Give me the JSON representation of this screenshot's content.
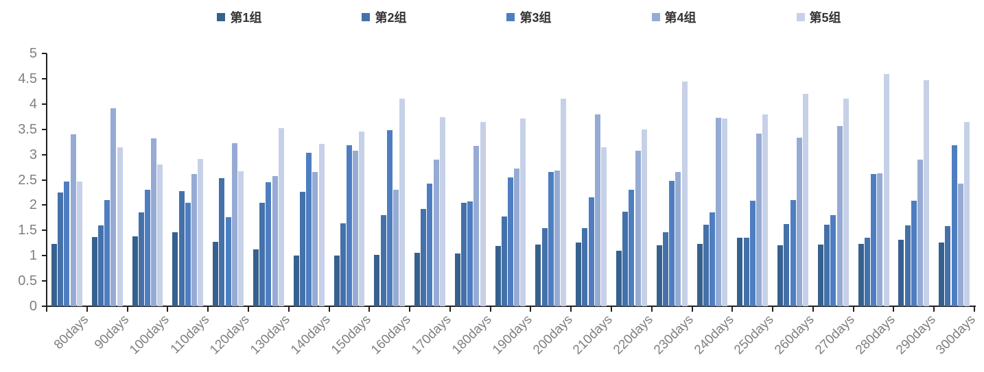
{
  "chart_data": {
    "type": "bar",
    "title": "",
    "xlabel": "",
    "ylabel": "",
    "legend_position": "top",
    "grid": false,
    "ylim": [
      0,
      5
    ],
    "yticks": [
      0,
      0.5,
      1,
      1.5,
      2,
      2.5,
      3,
      3.5,
      4,
      4.5,
      5
    ],
    "axis_color": "#1f1f1f",
    "tick_label_color": "#7f7f7f",
    "categories": [
      "80days",
      "90days",
      "100days",
      "110days",
      "120days",
      "130days",
      "140days",
      "150days",
      "160days",
      "170days",
      "180days",
      "190days",
      "200days",
      "210days",
      "220days",
      "230days",
      "240days",
      "250days",
      "260days",
      "270days",
      "280days",
      "290days",
      "300days"
    ],
    "series": [
      {
        "name": "第1组",
        "color": "#36618E",
        "values": [
          1.24,
          1.37,
          1.38,
          1.46,
          1.28,
          1.13,
          1.0,
          1.01,
          1.02,
          1.06,
          1.05,
          1.19,
          1.22,
          1.26,
          1.1,
          1.2,
          1.23,
          1.36,
          1.2,
          1.22,
          1.24,
          1.31,
          1.26
        ]
      },
      {
        "name": "第2组",
        "color": "#4471A9",
        "values": [
          2.25,
          1.6,
          1.86,
          2.28,
          2.53,
          2.05,
          2.26,
          1.64,
          1.8,
          1.92,
          2.05,
          1.77,
          1.54,
          1.54,
          1.87,
          1.47,
          1.61,
          1.35,
          1.63,
          1.61,
          1.36,
          1.6,
          1.58
        ]
      },
      {
        "name": "第3组",
        "color": "#4E7EC1",
        "values": [
          2.47,
          2.1,
          2.3,
          2.05,
          1.76,
          2.46,
          3.03,
          3.19,
          3.48,
          2.42,
          2.07,
          2.55,
          2.65,
          2.15,
          2.31,
          2.48,
          1.86,
          2.09,
          2.1,
          1.8,
          2.62,
          2.09,
          3.18
        ]
      },
      {
        "name": "第4组",
        "color": "#96ABD4",
        "values": [
          3.4,
          3.92,
          3.32,
          2.61,
          3.22,
          2.57,
          2.66,
          3.08,
          2.31,
          2.9,
          3.17,
          2.72,
          2.68,
          3.79,
          3.07,
          2.66,
          3.73,
          3.41,
          3.34,
          3.56,
          2.63,
          2.9,
          2.42
        ]
      },
      {
        "name": "第5组",
        "color": "#C6D1E8",
        "values": [
          2.47,
          3.15,
          2.8,
          2.92,
          2.67,
          3.52,
          3.21,
          3.45,
          4.1,
          3.74,
          3.64,
          3.71,
          4.11,
          3.14,
          3.5,
          4.45,
          3.71,
          3.8,
          4.2,
          4.1,
          4.6,
          4.47,
          3.65
        ]
      }
    ]
  }
}
